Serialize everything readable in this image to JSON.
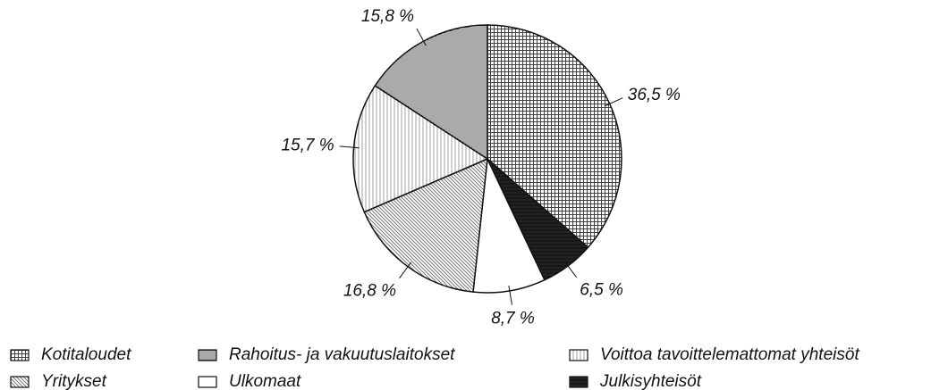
{
  "chart_data": {
    "type": "pie",
    "categories": [
      "Kotitaloudet",
      "Julkisyhteisöt",
      "Ulkomaat",
      "Yritykset",
      "Voittoa tavoittelemattomat yhteisöt",
      "Rahoitus- ja vakuutuslaitokset"
    ],
    "values": [
      36.5,
      6.5,
      8.7,
      16.8,
      15.7,
      15.8
    ],
    "value_labels": [
      "36,5 %",
      "6,5 %",
      "8,7 %",
      "16,8 %",
      "15,7 %",
      "15,8 %"
    ],
    "colors": [
      "#444444",
      "#222222",
      "#ffffff",
      "#666666",
      "#888888",
      "#555555"
    ]
  }
}
